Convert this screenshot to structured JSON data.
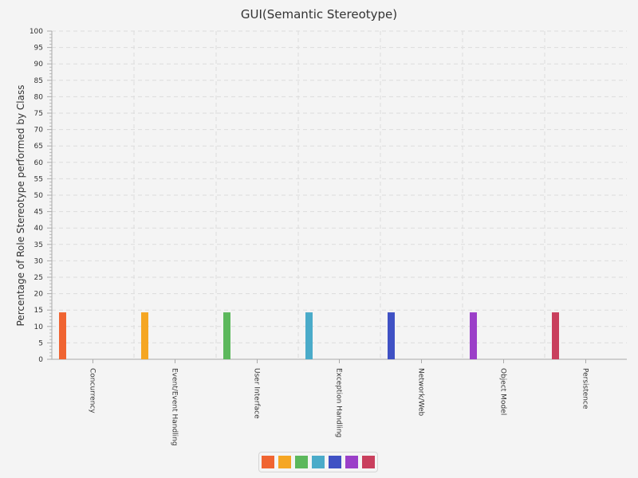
{
  "chart_data": {
    "type": "bar",
    "title": "GUI(Semantic Stereotype)",
    "xlabel": "",
    "ylabel": "Percentage of Role Stereotype performed by Class",
    "ylim": [
      0,
      100
    ],
    "yticks": [
      0,
      5,
      10,
      15,
      20,
      25,
      30,
      35,
      40,
      45,
      50,
      55,
      60,
      65,
      70,
      75,
      80,
      85,
      90,
      95,
      100
    ],
    "categories": [
      "Concurrency",
      "Event/Event Handling",
      "User Interface",
      "Exception Handling",
      "Network/Web",
      "Object Model",
      "Persistence"
    ],
    "values": [
      14.3,
      14.3,
      14.3,
      14.3,
      14.3,
      14.3,
      14.3
    ],
    "colors": [
      "#f06431",
      "#f5a623",
      "#5cb85c",
      "#4aabc9",
      "#3f51c4",
      "#9b3fc8",
      "#c93f5d"
    ],
    "grid": true,
    "legend": "bottom-center"
  }
}
